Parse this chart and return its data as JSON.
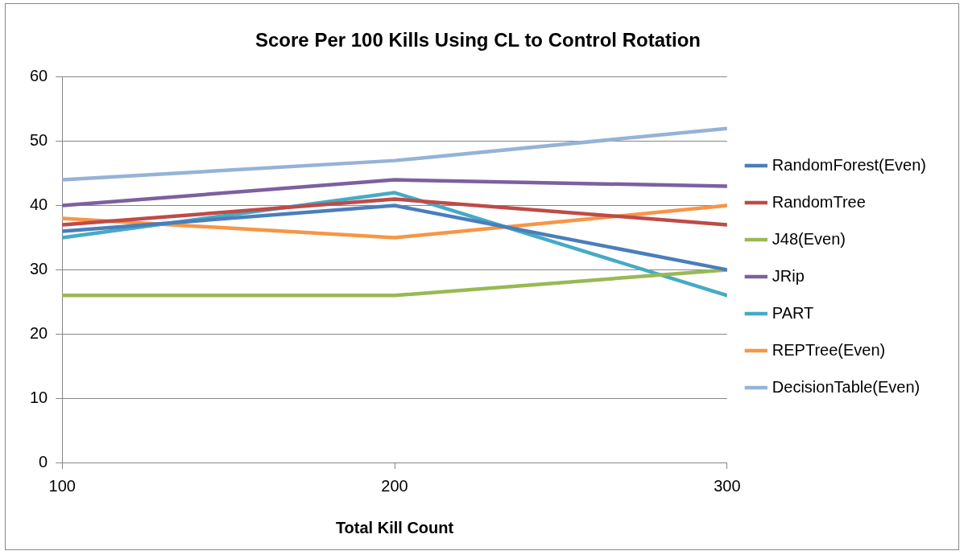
{
  "chart_data": {
    "type": "line",
    "title": "Score Per 100 Kills Using CL to Control Rotation",
    "xlabel": "Total Kill Count",
    "x": [
      100,
      200,
      300
    ],
    "xlim": [
      100,
      300
    ],
    "xticks": [
      100,
      200,
      300
    ],
    "ylim": [
      0,
      60
    ],
    "yticks": [
      0,
      10,
      20,
      30,
      40,
      50,
      60
    ],
    "grid": "y",
    "legend": "right",
    "marker": "none",
    "line_style": "solid",
    "series": [
      {
        "name": "RandomForest(Even)",
        "color": "#4a7ebb",
        "values": [
          36,
          40,
          30
        ]
      },
      {
        "name": "RandomTree",
        "color": "#be4b48",
        "values": [
          37,
          41,
          37
        ]
      },
      {
        "name": "J48(Even)",
        "color": "#98b954",
        "values": [
          26,
          26,
          30
        ]
      },
      {
        "name": "JRip",
        "color": "#7d60a0",
        "values": [
          40,
          44,
          43
        ]
      },
      {
        "name": "PART",
        "color": "#46aac5",
        "values": [
          35,
          42,
          26
        ]
      },
      {
        "name": "REPTree(Even)",
        "color": "#f79646",
        "values": [
          38,
          35,
          40
        ]
      },
      {
        "name": "DecisionTable(Even)",
        "color": "#95b3d7",
        "values": [
          44,
          47,
          52
        ]
      }
    ]
  }
}
